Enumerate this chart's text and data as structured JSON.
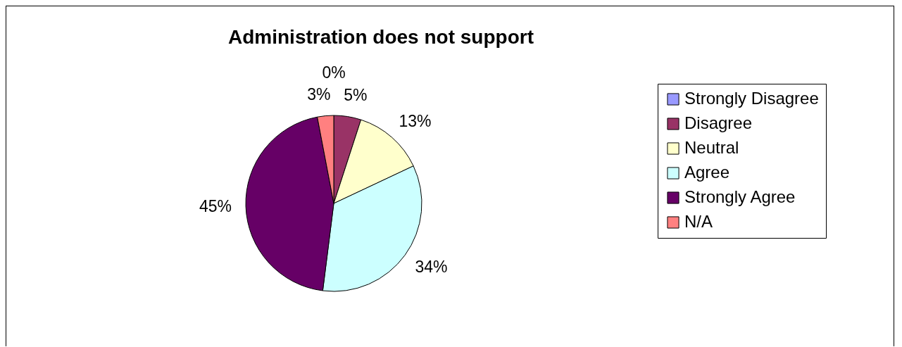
{
  "chart_data": {
    "type": "pie",
    "title": "Administration does not support",
    "categories": [
      "Strongly Disagree",
      "Disagree",
      "Neutral",
      "Agree",
      "Strongly Agree",
      "N/A"
    ],
    "values": [
      0,
      5,
      13,
      34,
      45,
      3
    ],
    "colors": [
      "#9999ff",
      "#993366",
      "#ffffcc",
      "#ccffff",
      "#660066",
      "#ff8080"
    ],
    "value_labels": [
      "0%",
      "5%",
      "13%",
      "34%",
      "45%",
      "3%"
    ],
    "legend": "right"
  }
}
